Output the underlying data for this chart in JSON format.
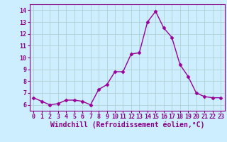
{
  "x": [
    0,
    1,
    2,
    3,
    4,
    5,
    6,
    7,
    8,
    9,
    10,
    11,
    12,
    13,
    14,
    15,
    16,
    17,
    18,
    19,
    20,
    21,
    22,
    23
  ],
  "y": [
    6.6,
    6.3,
    6.0,
    6.1,
    6.4,
    6.4,
    6.3,
    6.0,
    7.3,
    7.7,
    8.8,
    8.8,
    10.3,
    10.4,
    13.0,
    13.9,
    12.5,
    11.7,
    9.4,
    8.4,
    7.0,
    6.7,
    6.6,
    6.6
  ],
  "line_color": "#990099",
  "marker": "D",
  "marker_size": 2.5,
  "linewidth": 1.0,
  "xlabel": "Windchill (Refroidissement éolien,°C)",
  "xlabel_fontsize": 7,
  "ylim": [
    5.5,
    14.5
  ],
  "yticks": [
    6,
    7,
    8,
    9,
    10,
    11,
    12,
    13,
    14
  ],
  "xticks": [
    0,
    1,
    2,
    3,
    4,
    5,
    6,
    7,
    8,
    9,
    10,
    11,
    12,
    13,
    14,
    15,
    16,
    17,
    18,
    19,
    20,
    21,
    22,
    23
  ],
  "xlim": [
    -0.5,
    23.5
  ],
  "bg_color": "#cceeff",
  "grid_color": "#aacccc",
  "tick_fontsize": 6,
  "spine_color": "#880088"
}
